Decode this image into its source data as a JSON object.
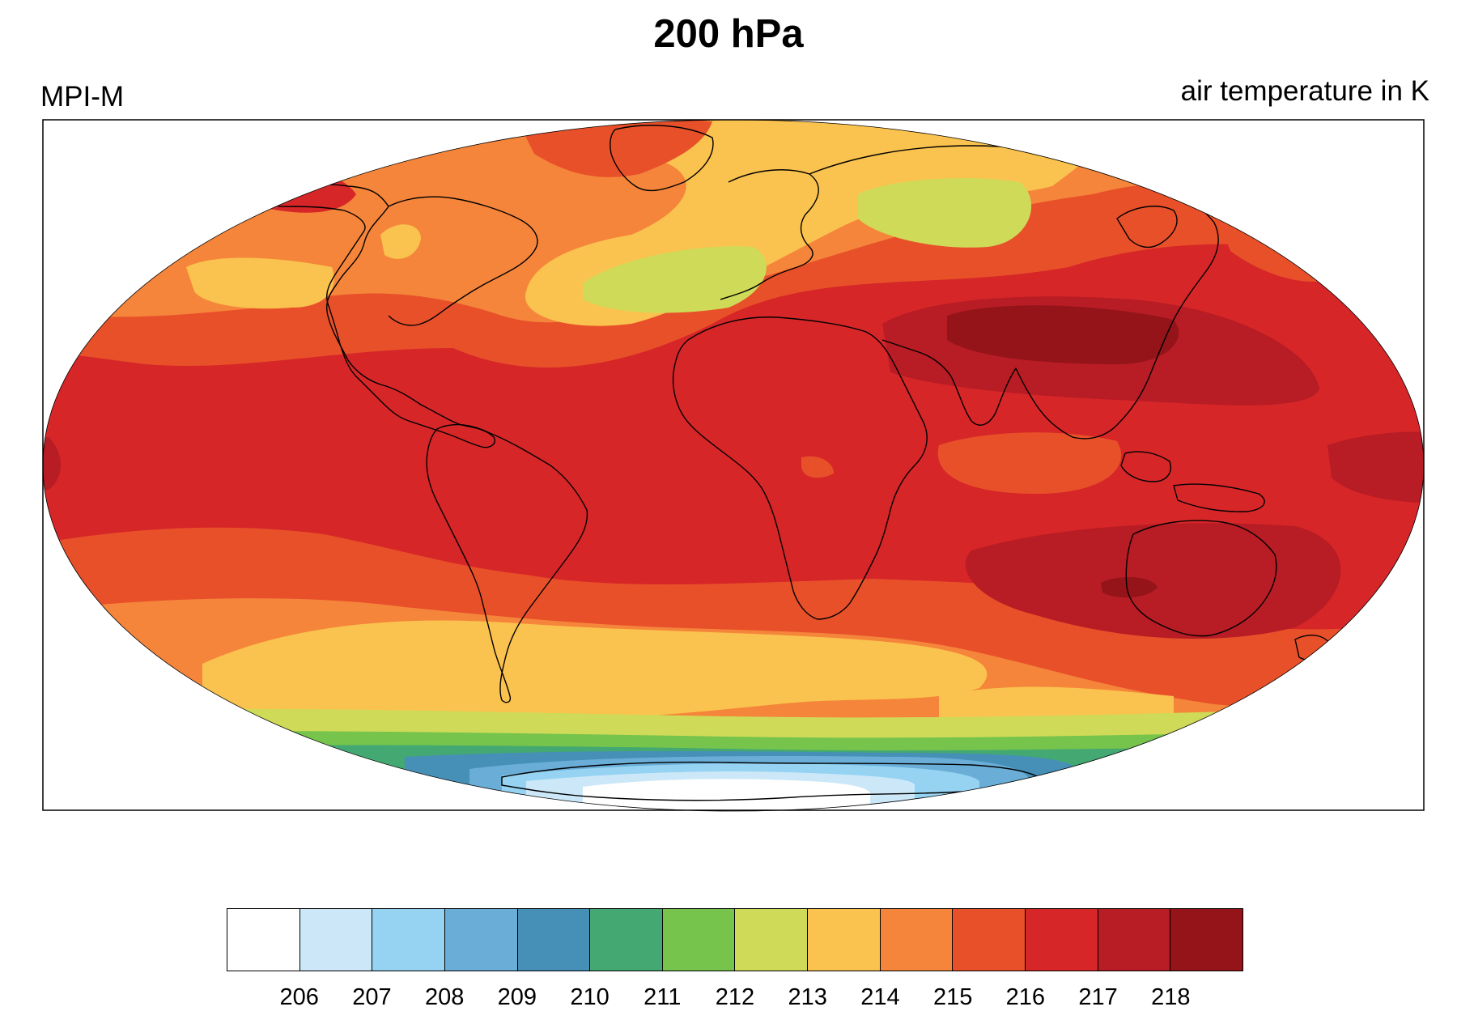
{
  "map": {
    "title": "200 hPa",
    "left_label": "MPI-M",
    "right_label": "air temperature in K",
    "projection": "mollweide",
    "central_longitude": 0,
    "coastlines": true,
    "border": true
  },
  "colorbar": {
    "orientation": "horizontal",
    "position": "bottom",
    "colors": [
      "#ffffff",
      "#cce8f8",
      "#96d3f2",
      "#6aaed8",
      "#4690b8",
      "#44a872",
      "#76c44c",
      "#cfdb58",
      "#fac24e",
      "#f5853a",
      "#e8502a",
      "#d62628",
      "#b81c24",
      "#94141a"
    ],
    "tick_labels": [
      "206",
      "207",
      "208",
      "209",
      "210",
      "211",
      "212",
      "213",
      "214",
      "215",
      "216",
      "217",
      "218"
    ]
  },
  "chart_data": {
    "type": "heatmap",
    "title": "200 hPa",
    "variable": "air temperature in K",
    "levels": [
      206,
      207,
      208,
      209,
      210,
      211,
      212,
      213,
      214,
      215,
      216,
      217,
      218
    ]
  }
}
